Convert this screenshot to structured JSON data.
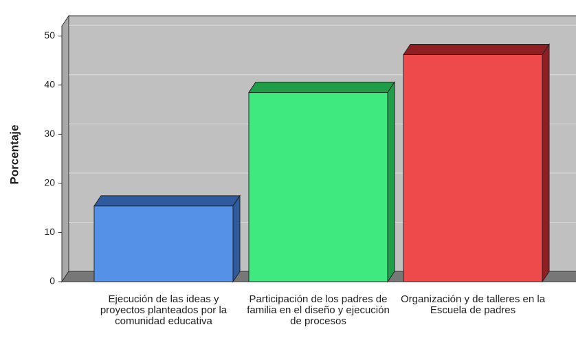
{
  "chart_data": {
    "type": "bar3d",
    "y_label": "Porcentaje",
    "categories": [
      "Ejecución de las ideas y proyectos planteados por la comunidad educativa",
      "Participación de los padres de familia en el diseño y ejecución de procesos",
      "Organización y de talleres en la Escuela de padres"
    ],
    "series": [
      {
        "name": null,
        "values": [
          15.4,
          38.5,
          46.2
        ],
        "colors": [
          "#5591e6",
          "#40e880",
          "#ee4a4c"
        ],
        "top_colors": [
          "#2f5a9e",
          "#1f9e4a",
          "#8e2024"
        ]
      }
    ],
    "ylim": [
      0,
      52
    ],
    "yticks": [
      0,
      10,
      20,
      30,
      40,
      50
    ],
    "grid": true
  }
}
